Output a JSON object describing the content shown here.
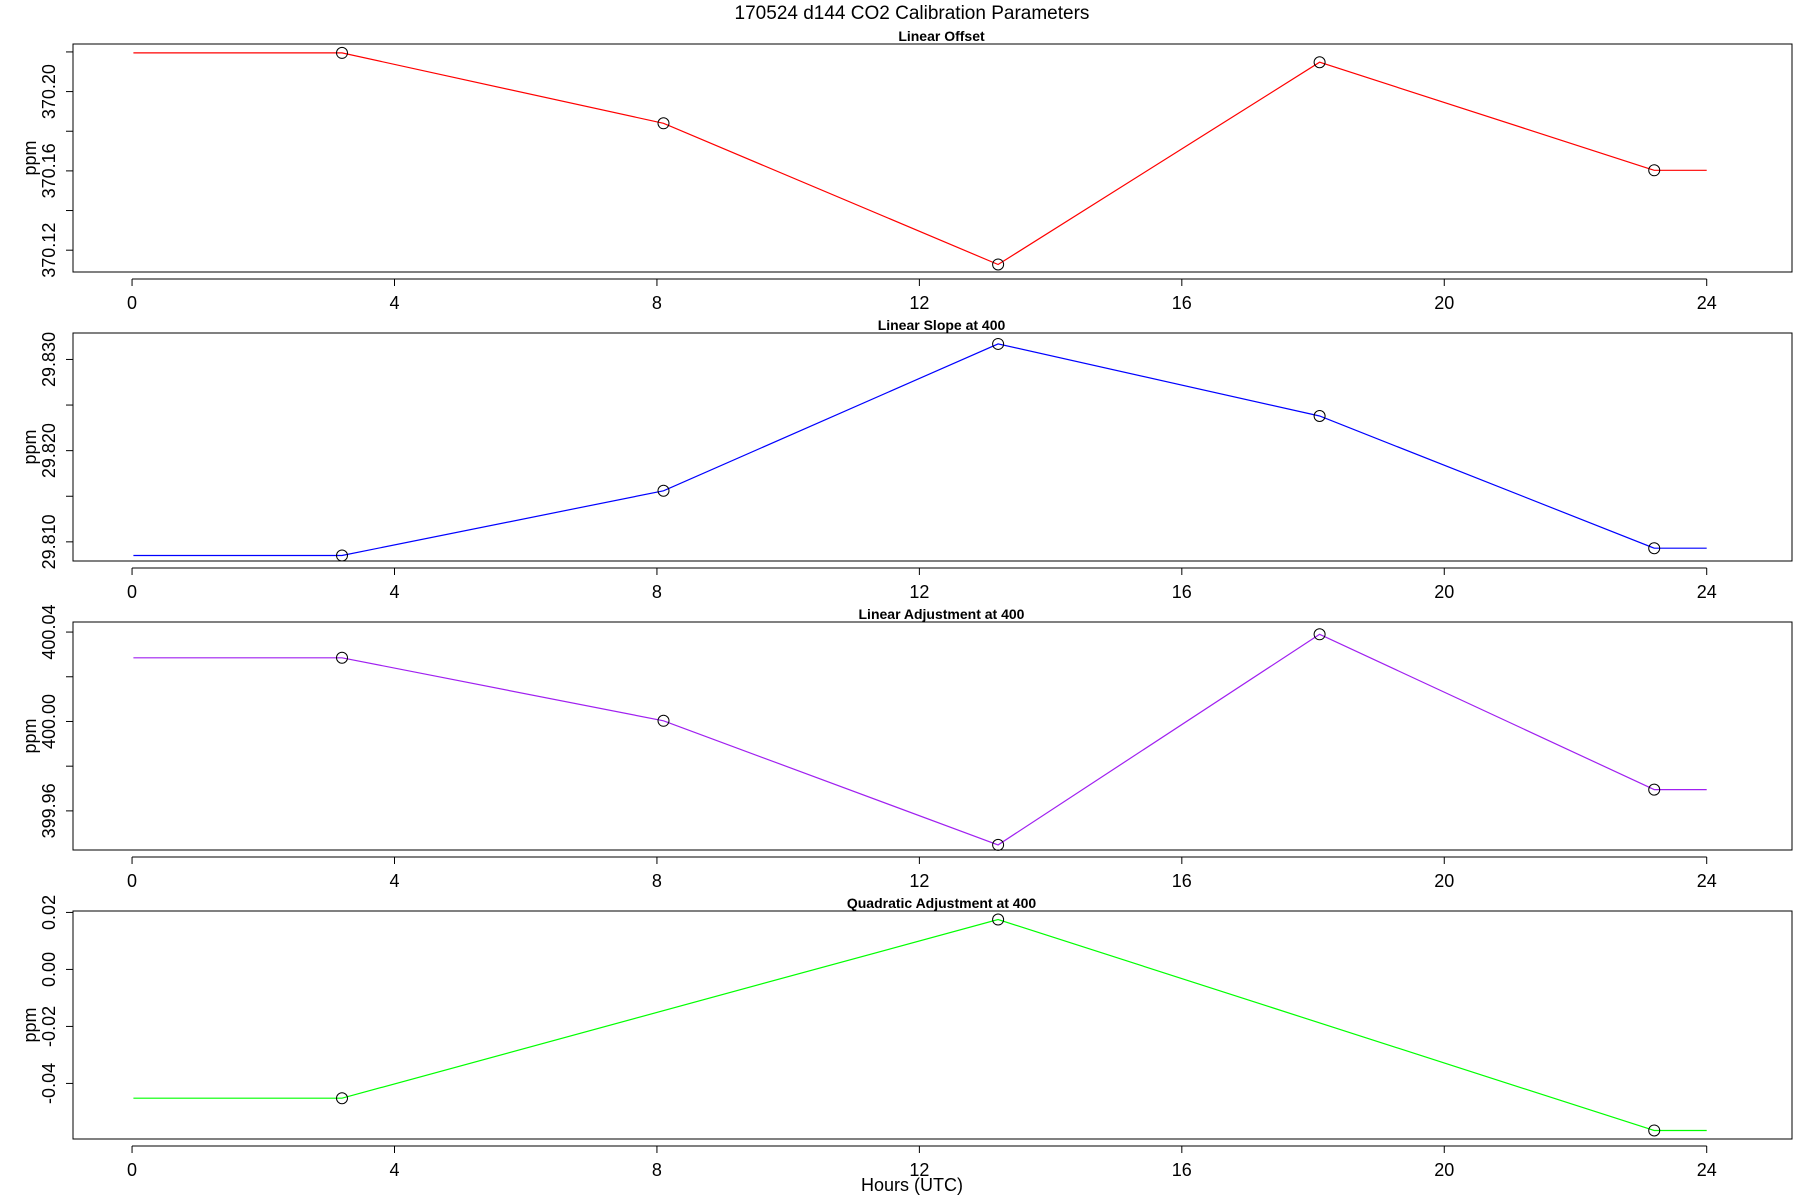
{
  "figure": {
    "title": "170524   d144   CO2 Calibration Parameters",
    "xlabel": "Hours (UTC)"
  },
  "chart_data": [
    {
      "type": "line",
      "title": "Linear Offset",
      "ylabel": "ppm",
      "xlabel": "Hours (UTC)",
      "xlim": [
        -0.9,
        25.3
      ],
      "ylim": [
        370.109,
        370.224
      ],
      "x_ticks": [
        0,
        4,
        8,
        12,
        16,
        20,
        24
      ],
      "y_ticks": [
        370.12,
        370.14,
        370.16,
        370.18,
        370.2,
        370.22
      ],
      "y_tick_labels": [
        "370.12",
        "",
        "370.16",
        "",
        "370.20",
        ""
      ],
      "color": "#ff0000",
      "points": [
        {
          "x": 3.2,
          "y": 370.2195
        },
        {
          "x": 8.1,
          "y": 370.184
        },
        {
          "x": 13.2,
          "y": 370.1128
        },
        {
          "x": 18.1,
          "y": 370.2148
        },
        {
          "x": 23.2,
          "y": 370.1603
        }
      ],
      "extend": {
        "x_start": 0.02,
        "x_end": 24.0
      },
      "grid": false,
      "legend": "none"
    },
    {
      "type": "line",
      "title": "Linear Slope at 400",
      "ylabel": "ppm",
      "xlabel": "Hours (UTC)",
      "xlim": [
        -0.9,
        25.3
      ],
      "ylim": [
        29.8079,
        29.8329
      ],
      "x_ticks": [
        0,
        4,
        8,
        12,
        16,
        20,
        24
      ],
      "y_ticks": [
        29.81,
        29.815,
        29.82,
        29.825,
        29.83
      ],
      "y_tick_labels": [
        "29.810",
        "",
        "29.820",
        "",
        "29.830"
      ],
      "color": "#0000ff",
      "points": [
        {
          "x": 3.2,
          "y": 29.8085
        },
        {
          "x": 8.1,
          "y": 29.8156
        },
        {
          "x": 13.2,
          "y": 29.8317
        },
        {
          "x": 18.1,
          "y": 29.8238
        },
        {
          "x": 23.2,
          "y": 29.8093
        }
      ],
      "extend": {
        "x_start": 0.02,
        "x_end": 24.0
      },
      "grid": false,
      "legend": "none"
    },
    {
      "type": "line",
      "title": "Linear Adjustment at 400",
      "ylabel": "ppm",
      "xlabel": "Hours (UTC)",
      "xlim": [
        -0.9,
        25.3
      ],
      "ylim": [
        399.9425,
        400.0445
      ],
      "x_ticks": [
        0,
        4,
        8,
        12,
        16,
        20,
        24
      ],
      "y_ticks": [
        399.96,
        399.98,
        400.0,
        400.02,
        400.04
      ],
      "y_tick_labels": [
        "399.96",
        "",
        "400.00",
        "",
        "400.04"
      ],
      "color": "#a020f0",
      "points": [
        {
          "x": 3.2,
          "y": 400.0285
        },
        {
          "x": 8.1,
          "y": 400.0003
        },
        {
          "x": 13.2,
          "y": 399.9448
        },
        {
          "x": 18.1,
          "y": 400.039
        },
        {
          "x": 23.2,
          "y": 399.9695
        }
      ],
      "extend": {
        "x_start": 0.02,
        "x_end": 24.0
      },
      "grid": false,
      "legend": "none"
    },
    {
      "type": "line",
      "title": "Quadratic Adjustment at 400",
      "ylabel": "ppm",
      "xlabel": "Hours (UTC)",
      "xlim": [
        -0.9,
        25.3
      ],
      "ylim": [
        -0.0595,
        0.0205
      ],
      "x_ticks": [
        0,
        4,
        8,
        12,
        16,
        20,
        24
      ],
      "y_ticks": [
        -0.04,
        -0.02,
        0.0,
        0.02
      ],
      "y_tick_labels": [
        "-0.04",
        "-0.02",
        "0.00",
        "0.02"
      ],
      "color": "#00ff00",
      "points": [
        {
          "x": 3.2,
          "y": -0.0452
        },
        {
          "x": 13.2,
          "y": 0.0175
        },
        {
          "x": 23.2,
          "y": -0.0565
        }
      ],
      "extend": {
        "x_start": 0.02,
        "x_end": 24.0
      },
      "grid": false,
      "legend": "none"
    }
  ]
}
